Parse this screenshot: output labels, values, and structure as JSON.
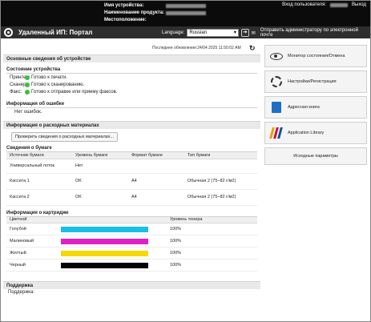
{
  "header": {
    "device_name_label": "Имя устройства:",
    "product_name_label": "Наименование продукта:",
    "location_label": "Местоположение:",
    "user_label": "Вход пользователя:",
    "logout": "Выход"
  },
  "nav": {
    "title": "Удаленный ИП: Портал",
    "language_label": "Language:",
    "language_value": "Russian",
    "mail_link": "Отправить администратору по электронной почте"
  },
  "last_updated": "Последнее обновление:24/04 2025 11:50:02 AM",
  "device_info": {
    "title": "Основные сведения об устройстве",
    "status_title": "Состояние устройства",
    "rows": [
      {
        "label": "Принтер:",
        "value": "Готово к печати."
      },
      {
        "label": "Сканер:",
        "value": "Готово к сканированию."
      },
      {
        "label": "Факс:",
        "value": "Готово к отправке или приему факсов."
      }
    ],
    "error_title": "Информация об ошибке",
    "error_value": "Нет ошибок."
  },
  "consumables": {
    "title": "Информация о расходных материалах",
    "check_button": "Проверить сведения о расходных материалах...",
    "paper_title": "Сведения о бумаге",
    "paper_headers": [
      "Источник бумаги",
      "Уровень бумаги",
      "Формат бумаги",
      "Тип бумаги"
    ],
    "paper_rows": [
      {
        "source": "Универсальный лоток",
        "level": "Нет",
        "size": "",
        "type": ""
      },
      {
        "source": "Кассета 1",
        "level": "OK",
        "size": "A4",
        "type": "Обычная 2 (75–82 г/м2)"
      },
      {
        "source": "Кассета 2",
        "level": "OK",
        "size": "A4",
        "type": "Обычная 2 (75–82 г/м2)"
      }
    ],
    "cartridge_title": "Информация о картридже",
    "cartridge_headers": [
      "Цветной",
      "Уровень тонера"
    ],
    "cartridges": [
      {
        "name": "Голубой",
        "level": "100%",
        "color": "#19bfe6"
      },
      {
        "name": "Малиновый",
        "level": "100%",
        "color": "#e020c8"
      },
      {
        "name": "Желтый",
        "level": "100%",
        "color": "#f7d700"
      },
      {
        "name": "Черный",
        "level": "100%",
        "color": "#050505"
      }
    ]
  },
  "support": {
    "title": "Поддержка",
    "label": "Поддержка:"
  },
  "sidebar": {
    "items": [
      {
        "label": "Монитор состояния/Отмена",
        "icon": "eye-icon"
      },
      {
        "label": "Настройки/Регистрация",
        "icon": "gear-icon"
      },
      {
        "label": "Адресная книга",
        "icon": "address-book-icon"
      },
      {
        "label": "Application Library",
        "icon": "library-icon"
      },
      {
        "label": "Исходные параметры",
        "icon": ""
      }
    ]
  }
}
